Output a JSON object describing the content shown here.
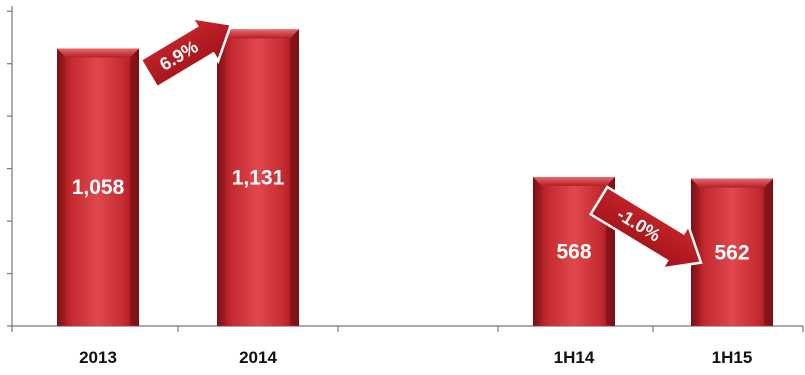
{
  "chart_data": {
    "type": "bar",
    "categories": [
      "2013",
      "2014",
      "",
      "1H14",
      "1H15"
    ],
    "values": [
      1058,
      1131,
      null,
      568,
      562
    ],
    "value_labels": [
      "1,058",
      "1,131",
      "",
      "568",
      "562"
    ],
    "ylim": [
      0,
      1200
    ],
    "y_tick_step": 200,
    "show_y_tick_labels": false,
    "grid": false,
    "bar_color": "#c0272d",
    "bar_dark": "#7d1015",
    "bar_light": "#e2585d",
    "annotations": [
      {
        "text": "6.9%",
        "from_category": "2013",
        "to_category": "2014",
        "direction": "up"
      },
      {
        "text": "-1.0%",
        "from_category": "1H14",
        "to_category": "1H15",
        "direction": "down"
      }
    ]
  }
}
